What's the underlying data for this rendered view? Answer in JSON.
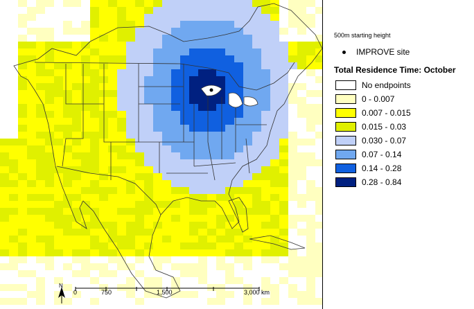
{
  "legend": {
    "starting_height": "500m starting height",
    "site_label": "IMPROVE site",
    "title": "Total Residence Time: October",
    "classes": [
      {
        "label": "No endpoints",
        "color": "#ffffff"
      },
      {
        "label": "0 - 0.007",
        "color": "#ffffc0"
      },
      {
        "label": "0.007 - 0.015",
        "color": "#ffff00"
      },
      {
        "label": "0.015 - 0.03",
        "color": "#e0f000"
      },
      {
        "label": "0.030 - 0.07",
        "color": "#c0d0f8"
      },
      {
        "label": "0.07 - 0.14",
        "color": "#70a8f0"
      },
      {
        "label": "0.14 - 0.28",
        "color": "#1060e0"
      },
      {
        "label": "0.28 - 0.84",
        "color": "#002080"
      }
    ]
  },
  "map": {
    "north_label": "N",
    "scale_labels": [
      "0",
      "750",
      "1,500",
      "3,000 km"
    ]
  }
}
